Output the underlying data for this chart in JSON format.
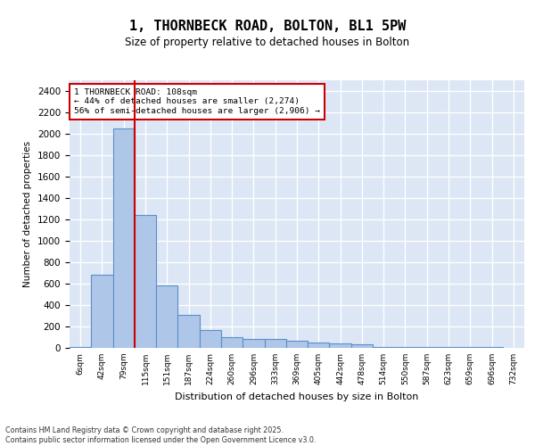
{
  "title": "1, THORNBECK ROAD, BOLTON, BL1 5PW",
  "subtitle": "Size of property relative to detached houses in Bolton",
  "xlabel": "Distribution of detached houses by size in Bolton",
  "ylabel": "Number of detached properties",
  "bar_color": "#aec6e8",
  "bar_edge_color": "#5b8fc9",
  "background_color": "#dce6f5",
  "grid_color": "#ffffff",
  "bins": [
    "6sqm",
    "42sqm",
    "79sqm",
    "115sqm",
    "151sqm",
    "187sqm",
    "224sqm",
    "260sqm",
    "296sqm",
    "333sqm",
    "369sqm",
    "405sqm",
    "442sqm",
    "478sqm",
    "514sqm",
    "550sqm",
    "587sqm",
    "623sqm",
    "659sqm",
    "696sqm",
    "732sqm"
  ],
  "values": [
    5,
    680,
    2050,
    1240,
    580,
    310,
    170,
    100,
    80,
    80,
    65,
    50,
    45,
    35,
    5,
    5,
    5,
    5,
    5,
    5,
    2
  ],
  "ylim": [
    0,
    2500
  ],
  "yticks": [
    0,
    200,
    400,
    600,
    800,
    1000,
    1200,
    1400,
    1600,
    1800,
    2000,
    2200,
    2400
  ],
  "property_bin_index": 2,
  "red_line_x": 2.5,
  "annotation_line1": "1 THORNBECK ROAD: 108sqm",
  "annotation_line2": "← 44% of detached houses are smaller (2,274)",
  "annotation_line3": "56% of semi-detached houses are larger (2,906) →",
  "red_color": "#cc0000",
  "footer_text": "Contains HM Land Registry data © Crown copyright and database right 2025.\nContains public sector information licensed under the Open Government Licence v3.0."
}
